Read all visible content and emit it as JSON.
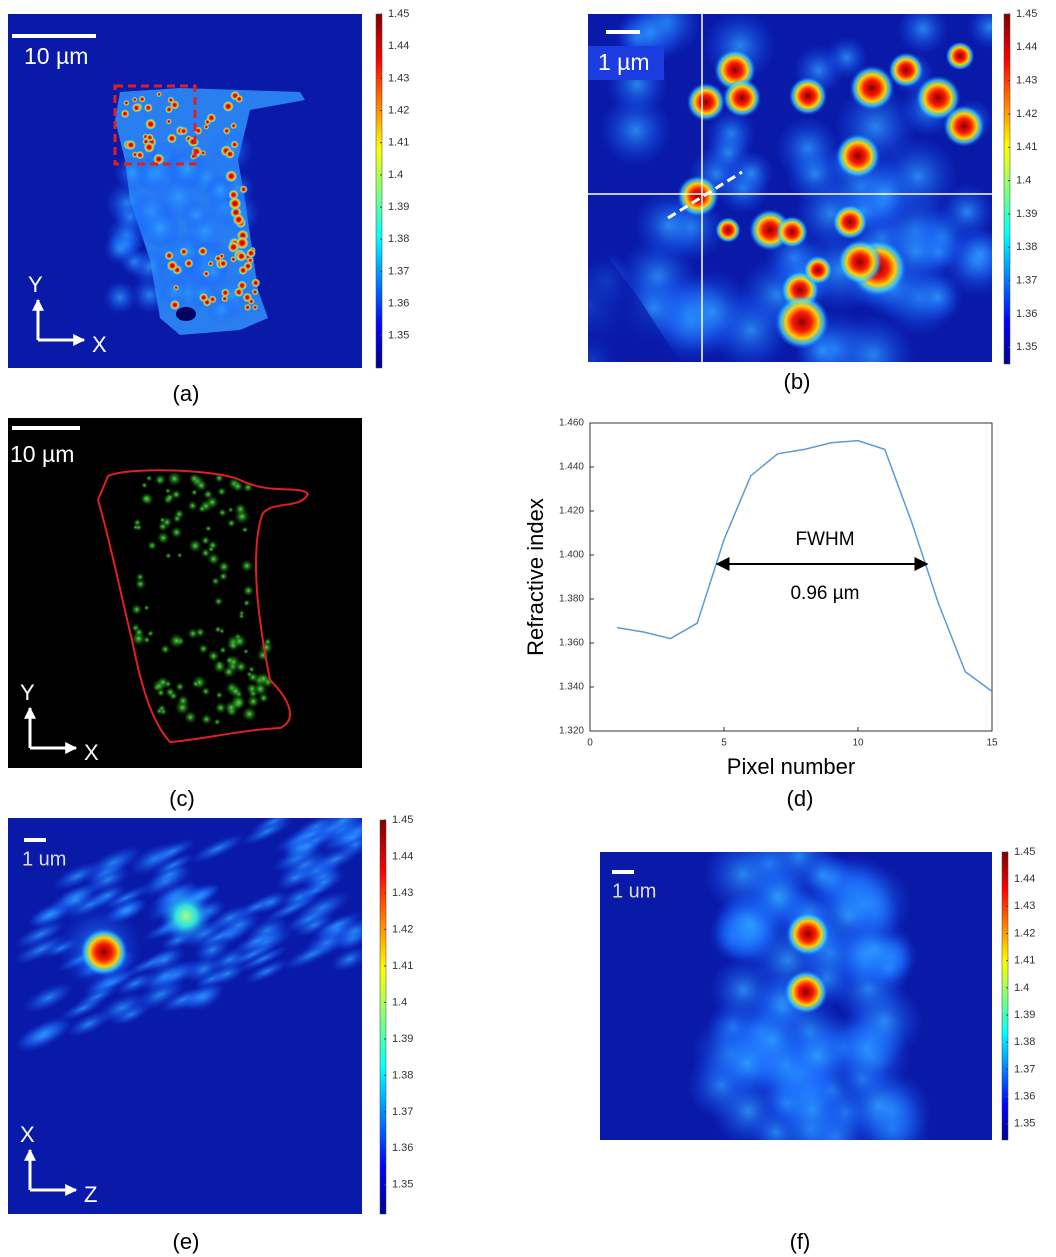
{
  "panels": [
    {
      "label": "(a)",
      "scale_bar": "10 µm",
      "axes": {
        "vertical": "Y",
        "horizontal": "X"
      },
      "colorbar": {
        "clim": [
          1.34,
          1.45
        ],
        "ticks": [
          1.35,
          1.36,
          1.37,
          1.38,
          1.39,
          1.4,
          1.41,
          1.42,
          1.43,
          1.44,
          1.45
        ]
      }
    },
    {
      "label": "(b)",
      "scale_bar": "1 µm",
      "colorbar": {
        "clim": [
          1.345,
          1.45
        ],
        "ticks": [
          1.35,
          1.36,
          1.37,
          1.38,
          1.39,
          1.4,
          1.41,
          1.42,
          1.43,
          1.44,
          1.45
        ]
      }
    },
    {
      "label": "(c)",
      "scale_bar": "10 µm",
      "axes": {
        "vertical": "Y",
        "horizontal": "X"
      }
    },
    {
      "label": "(e)",
      "scale_bar": "1 um",
      "axes": {
        "vertical": "X",
        "horizontal": "Z"
      },
      "colorbar": {
        "clim": [
          1.342,
          1.45
        ],
        "ticks": [
          1.35,
          1.36,
          1.37,
          1.38,
          1.39,
          1.4,
          1.41,
          1.42,
          1.43,
          1.44,
          1.45
        ]
      }
    },
    {
      "label": "(f)",
      "scale_bar": "1 um",
      "colorbar": {
        "clim": [
          1.344,
          1.45
        ],
        "ticks": [
          1.35,
          1.36,
          1.37,
          1.38,
          1.39,
          1.4,
          1.41,
          1.42,
          1.43,
          1.44,
          1.45
        ]
      }
    }
  ],
  "chart_data": {
    "type": "line",
    "panel_label": "(d)",
    "x_label": "Pixel number",
    "y_label": "Refractive index",
    "x": [
      1,
      2,
      3,
      4,
      5,
      6,
      7,
      8,
      9,
      10,
      11,
      12,
      13,
      14,
      15
    ],
    "values": [
      1.367,
      1.365,
      1.362,
      1.369,
      1.407,
      1.436,
      1.446,
      1.448,
      1.451,
      1.452,
      1.448,
      1.415,
      1.378,
      1.347,
      1.338
    ],
    "color": "#5b9bd5",
    "xlim": [
      0,
      15
    ],
    "xticks": [
      0,
      5,
      10,
      15
    ],
    "ylim": [
      1.32,
      1.46
    ],
    "yticks": [
      {
        "value": 1.32,
        "label": "1.320"
      },
      {
        "value": 1.34,
        "label": "1.340"
      },
      {
        "value": 1.36,
        "label": "1.360"
      },
      {
        "value": 1.38,
        "label": "1.380"
      },
      {
        "value": 1.4,
        "label": "1.400"
      },
      {
        "value": 1.42,
        "label": "1.420"
      },
      {
        "value": 1.44,
        "label": "1.440"
      },
      {
        "value": 1.46,
        "label": "1.460"
      }
    ],
    "annotations": [
      "FWHM",
      "0.96 µm"
    ]
  }
}
